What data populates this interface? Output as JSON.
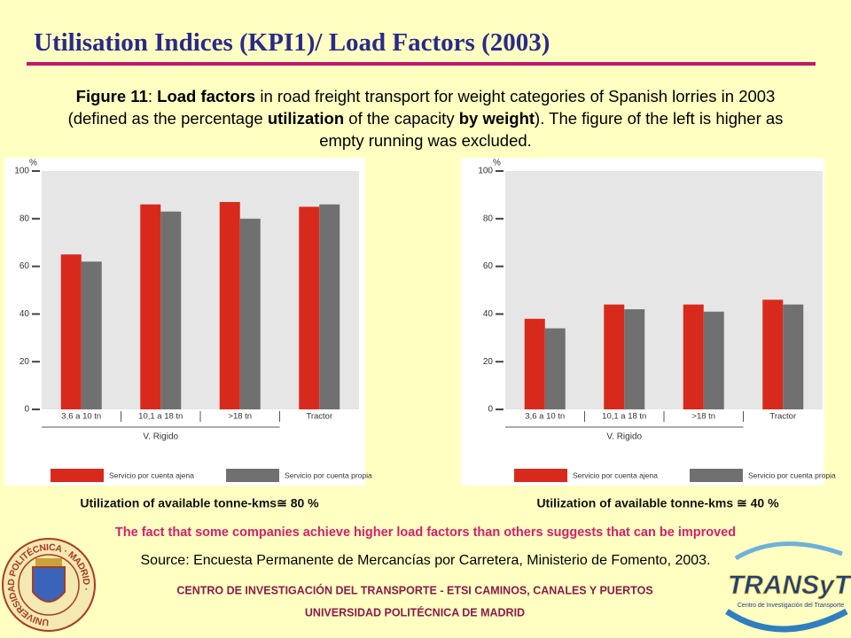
{
  "title": "Utilisation Indices (KPI1)/ Load Factors (2003)",
  "caption": [
    {
      "text": "Figure 11",
      "bold": true
    },
    {
      "text": ": "
    },
    {
      "text": "Load factors",
      "bold": true
    },
    {
      "text": " in road freight transport for weight categories of Spanish lorries in 2003 (defined as the percentage "
    },
    {
      "text": "utilization",
      "bold": true
    },
    {
      "text": " of the capacity "
    },
    {
      "text": "by weight",
      "bold": true
    },
    {
      "text": "). The figure of the left is higher as empty running was excluded."
    }
  ],
  "chart_data": [
    {
      "type": "bar",
      "ylabel": "%",
      "categories": [
        "3,6 a 10 tn",
        "10,1 a 18 tn",
        ">18 tn",
        "Tractor"
      ],
      "group_label": "V. Rigido",
      "series": [
        {
          "name": "Servicio por cuenta ajena",
          "color": "#d82a1c",
          "values": [
            65,
            86,
            87,
            85
          ]
        },
        {
          "name": "Servicio por cuenta propia",
          "color": "#707070",
          "values": [
            62,
            83,
            80,
            86
          ]
        }
      ],
      "ylim": [
        0,
        100
      ],
      "yticks": [
        0,
        20,
        40,
        60,
        80,
        100
      ],
      "grid": false,
      "note": "Utilization of available tonne-kms≅ 80 %"
    },
    {
      "type": "bar",
      "ylabel": "%",
      "categories": [
        "3,6 a 10 tn",
        "10,1 a 18 tn",
        ">18 tn",
        "Tractor"
      ],
      "group_label": "V. Rigido",
      "series": [
        {
          "name": "Servicio por cuenta ajena",
          "color": "#d82a1c",
          "values": [
            38,
            44,
            44,
            46
          ]
        },
        {
          "name": "Servicio por cuenta propia",
          "color": "#707070",
          "values": [
            34,
            42,
            41,
            44
          ]
        }
      ],
      "ylim": [
        0,
        100
      ],
      "yticks": [
        0,
        20,
        40,
        60,
        80,
        100
      ],
      "grid": false,
      "note": "Utilization of available tonne-kms ≅ 40 %"
    }
  ],
  "highlight": "The fact that some companies achieve higher load factors than others suggests that can be improved",
  "source": "Source: Encuesta Permanente de Mercancías por Carretera, Ministerio de Fomento, 2003.",
  "footer": [
    "CENTRO DE INVESTIGACIÓN DEL TRANSPORTE - ETSI CAMINOS, CANALES Y PUERTOS",
    "UNIVERSIDAD POLITÉCNICA DE MADRID"
  ],
  "seal_text": "UNIVERSIDAD POLITÉCNICA · MADRID ·",
  "logo": {
    "name": "TRANSyT",
    "subtitle": "Centro de Investigación del Transporte"
  }
}
